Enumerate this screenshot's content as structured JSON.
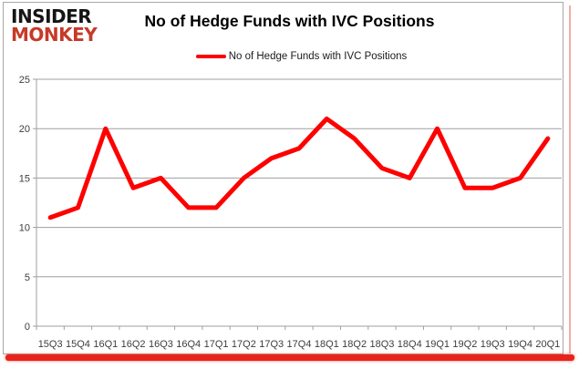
{
  "brand": {
    "line1": "INSIDER",
    "line2": "MONKEY"
  },
  "header": {
    "title": "No of Hedge Funds with IVC Positions"
  },
  "legend": {
    "label": "No of Hedge Funds with IVC Positions"
  },
  "colors": {
    "series": "#fe0000",
    "brand_black": "#151515",
    "brand_red": "#c63a28",
    "grid": "#9f9f9f",
    "axis_text": "#3d3d3d",
    "accent_bar": "#e8231a",
    "accent_shadow": "#f2aca6"
  },
  "chart_data": {
    "type": "line",
    "title": "No of Hedge Funds with IVC Positions",
    "categories": [
      "15Q3",
      "15Q4",
      "16Q1",
      "16Q2",
      "16Q3",
      "16Q4",
      "17Q1",
      "17Q2",
      "17Q3",
      "17Q4",
      "18Q1",
      "18Q2",
      "18Q3",
      "18Q4",
      "19Q1",
      "19Q2",
      "19Q3",
      "19Q4",
      "20Q1"
    ],
    "series": [
      {
        "name": "No of Hedge Funds with IVC Positions",
        "color": "#fe0000",
        "values": [
          11,
          12,
          20,
          14,
          15,
          12,
          12,
          15,
          17,
          18,
          21,
          19,
          16,
          15,
          20,
          14,
          14,
          15,
          19
        ]
      }
    ],
    "xlabel": "",
    "ylabel": "",
    "ylim": [
      0,
      25
    ],
    "yticks": [
      0,
      5,
      10,
      15,
      20,
      25
    ],
    "grid": true,
    "legend_position": "top-center"
  }
}
